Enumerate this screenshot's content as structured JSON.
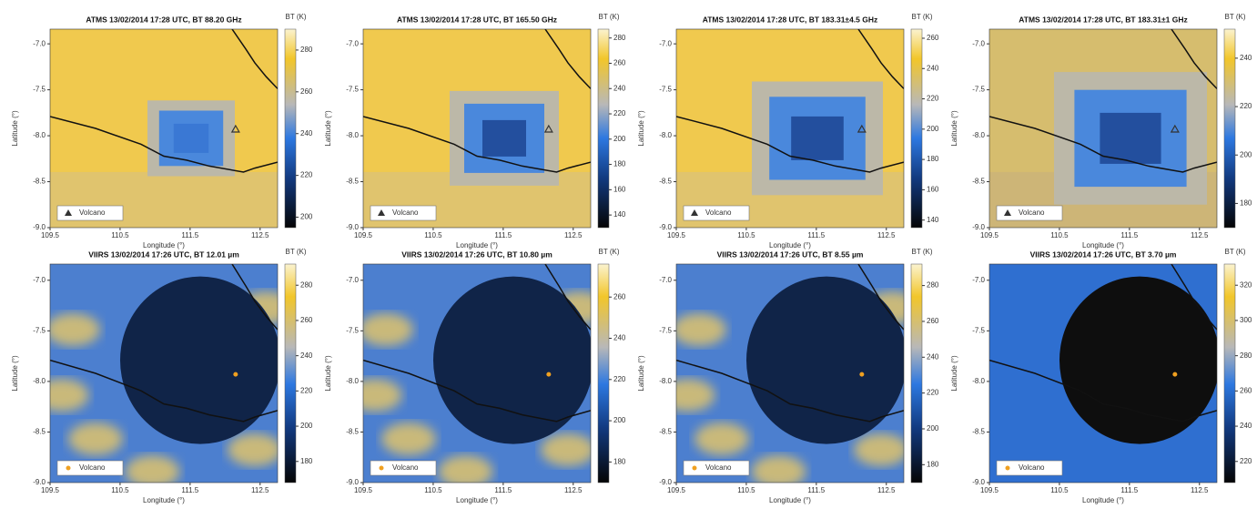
{
  "chart_data": [
    {
      "type": "map",
      "title": "ATMS 13/02/2014 17:28 UTC, BT 88.20 GHz",
      "xlabel": "Longitude (°)",
      "ylabel": "Latitude (°)",
      "xlim": [
        109.5,
        112.75
      ],
      "ylim": [
        -9,
        -6.84
      ],
      "xticks": [
        109.5,
        110.5,
        111.5,
        112.5
      ],
      "yticks": [
        {
          "value": -7,
          "label": "-7.0"
        },
        -7.5,
        {
          "value": -8,
          "label": "-8.0"
        },
        -8.5,
        {
          "value": -9,
          "label": "-9.0"
        }
      ],
      "colorbar": {
        "label": "BT (K)",
        "lim": [
          195,
          290
        ],
        "ticks": [
          200,
          220,
          240,
          260,
          280
        ]
      },
      "series": [
        {
          "name": "Volcano",
          "marker": "triangle",
          "color": "#333333",
          "x": [
            112.15
          ],
          "y": [
            -7.93
          ]
        }
      ]
    },
    {
      "type": "map",
      "title": "ATMS 13/02/2014 17:28 UTC, BT 165.50 GHz",
      "xlabel": "Longitude (°)",
      "ylabel": "Latitude (°)",
      "xlim": [
        109.5,
        112.75
      ],
      "ylim": [
        -9,
        -6.84
      ],
      "xticks": [
        109.5,
        110.5,
        111.5,
        112.5
      ],
      "yticks": [
        {
          "value": -7,
          "label": "-7.0"
        },
        -7.5,
        {
          "value": -8,
          "label": "-8.0"
        },
        -8.5,
        {
          "value": -9,
          "label": "-9.0"
        }
      ],
      "colorbar": {
        "label": "BT (K)",
        "lim": [
          130,
          287
        ],
        "ticks": [
          140,
          160,
          180,
          200,
          220,
          240,
          260,
          280
        ]
      },
      "series": [
        {
          "name": "Volcano",
          "marker": "triangle",
          "color": "#333333",
          "x": [
            112.15
          ],
          "y": [
            -7.93
          ]
        }
      ]
    },
    {
      "type": "map",
      "title": "ATMS 13/02/2014 17:28 UTC, BT 183.31±4.5 GHz",
      "xlabel": "Longitude (°)",
      "ylabel": "Latitude (°)",
      "xlim": [
        109.5,
        112.75
      ],
      "ylim": [
        -9,
        -6.84
      ],
      "xticks": [
        109.5,
        110.5,
        111.5,
        112.5
      ],
      "yticks": [
        {
          "value": -7,
          "label": "-7.0"
        },
        -7.5,
        {
          "value": -8,
          "label": "-8.0"
        },
        -8.5,
        {
          "value": -9,
          "label": "-9.0"
        }
      ],
      "colorbar": {
        "label": "BT (K)",
        "lim": [
          135,
          266
        ],
        "ticks": [
          140,
          160,
          180,
          200,
          220,
          240,
          260
        ]
      },
      "series": [
        {
          "name": "Volcano",
          "marker": "triangle",
          "color": "#333333",
          "x": [
            112.15
          ],
          "y": [
            -7.93
          ]
        }
      ]
    },
    {
      "type": "map",
      "title": "ATMS 13/02/2014 17:28 UTC, BT 183.31±1 GHz",
      "xlabel": "Longitude (°)",
      "ylabel": "Latitude (°)",
      "xlim": [
        109.5,
        112.75
      ],
      "ylim": [
        -9,
        -6.84
      ],
      "xticks": [
        109.5,
        110.5,
        111.5,
        112.5
      ],
      "yticks": [
        {
          "value": -7,
          "label": "-7.0"
        },
        -7.5,
        {
          "value": -8,
          "label": "-8.0"
        },
        -8.5,
        {
          "value": -9,
          "label": "-9.0"
        }
      ],
      "colorbar": {
        "label": "BT (K)",
        "lim": [
          170,
          252
        ],
        "ticks": [
          180,
          200,
          220,
          240
        ]
      },
      "series": [
        {
          "name": "Volcano",
          "marker": "triangle",
          "color": "#333333",
          "x": [
            112.15
          ],
          "y": [
            -7.93
          ]
        }
      ]
    },
    {
      "type": "map",
      "title": "VIIRS 13/02/2014 17:26 UTC, BT 12.01 µm",
      "xlabel": "Longitude (°)",
      "ylabel": "Latitude (°)",
      "xlim": [
        109.5,
        112.75
      ],
      "ylim": [
        -9,
        -6.84
      ],
      "xticks": [
        109.5,
        110.5,
        111.5,
        112.5
      ],
      "yticks": [
        {
          "value": -7,
          "label": "-7.0"
        },
        -7.5,
        {
          "value": -8,
          "label": "-8.0"
        },
        -8.5,
        {
          "value": -9,
          "label": "-9.0"
        }
      ],
      "colorbar": {
        "label": "BT (K)",
        "lim": [
          168,
          292
        ],
        "ticks": [
          180,
          200,
          220,
          240,
          260,
          280
        ]
      },
      "series": [
        {
          "name": "Volcano",
          "marker": "dot",
          "color": "#f0a020",
          "x": [
            112.15
          ],
          "y": [
            -7.93
          ]
        }
      ]
    },
    {
      "type": "map",
      "title": "VIIRS 13/02/2014 17:26 UTC, BT 10.80 µm",
      "xlabel": "Longitude (°)",
      "ylabel": "Latitude (°)",
      "xlim": [
        109.5,
        112.75
      ],
      "ylim": [
        -9,
        -6.84
      ],
      "xticks": [
        109.5,
        110.5,
        111.5,
        112.5
      ],
      "yticks": [
        {
          "value": -7,
          "label": "-7.0"
        },
        -7.5,
        {
          "value": -8,
          "label": "-8.0"
        },
        -8.5,
        {
          "value": -9,
          "label": "-9.0"
        }
      ],
      "colorbar": {
        "label": "BT (K)",
        "lim": [
          170,
          276
        ],
        "ticks": [
          180,
          200,
          220,
          240,
          260
        ]
      },
      "series": [
        {
          "name": "Volcano",
          "marker": "dot",
          "color": "#f0a020",
          "x": [
            112.15
          ],
          "y": [
            -7.93
          ]
        }
      ]
    },
    {
      "type": "map",
      "title": "VIIRS 13/02/2014 17:26 UTC, BT 8.55 µm",
      "xlabel": "Longitude (°)",
      "ylabel": "Latitude (°)",
      "xlim": [
        109.5,
        112.75
      ],
      "ylim": [
        -9,
        -6.84
      ],
      "xticks": [
        109.5,
        110.5,
        111.5,
        112.5
      ],
      "yticks": [
        {
          "value": -7,
          "label": "-7.0"
        },
        -7.5,
        {
          "value": -8,
          "label": "-8.0"
        },
        -8.5,
        {
          "value": -9,
          "label": "-9.0"
        }
      ],
      "colorbar": {
        "label": "BT (K)",
        "lim": [
          170,
          292
        ],
        "ticks": [
          180,
          200,
          220,
          240,
          260,
          280
        ]
      },
      "series": [
        {
          "name": "Volcano",
          "marker": "dot",
          "color": "#f0a020",
          "x": [
            112.15
          ],
          "y": [
            -7.93
          ]
        }
      ]
    },
    {
      "type": "map",
      "title": "VIIRS 13/02/2014 17:26 UTC, BT 3.70 µm",
      "xlabel": "Longitude (°)",
      "ylabel": "Latitude (°)",
      "xlim": [
        109.5,
        112.75
      ],
      "ylim": [
        -9,
        -6.84
      ],
      "xticks": [
        109.5,
        110.5,
        111.5,
        112.5
      ],
      "yticks": [
        {
          "value": -7,
          "label": "-7.0"
        },
        -7.5,
        {
          "value": -8,
          "label": "-8.0"
        },
        -8.5,
        {
          "value": -9,
          "label": "-9.0"
        }
      ],
      "colorbar": {
        "label": "BT (K)",
        "lim": [
          208,
          332
        ],
        "ticks": [
          220,
          240,
          260,
          280,
          300,
          320
        ]
      },
      "series": [
        {
          "name": "Volcano",
          "marker": "dot",
          "color": "#f0a020",
          "x": [
            112.15
          ],
          "y": [
            -7.93
          ]
        }
      ]
    }
  ]
}
